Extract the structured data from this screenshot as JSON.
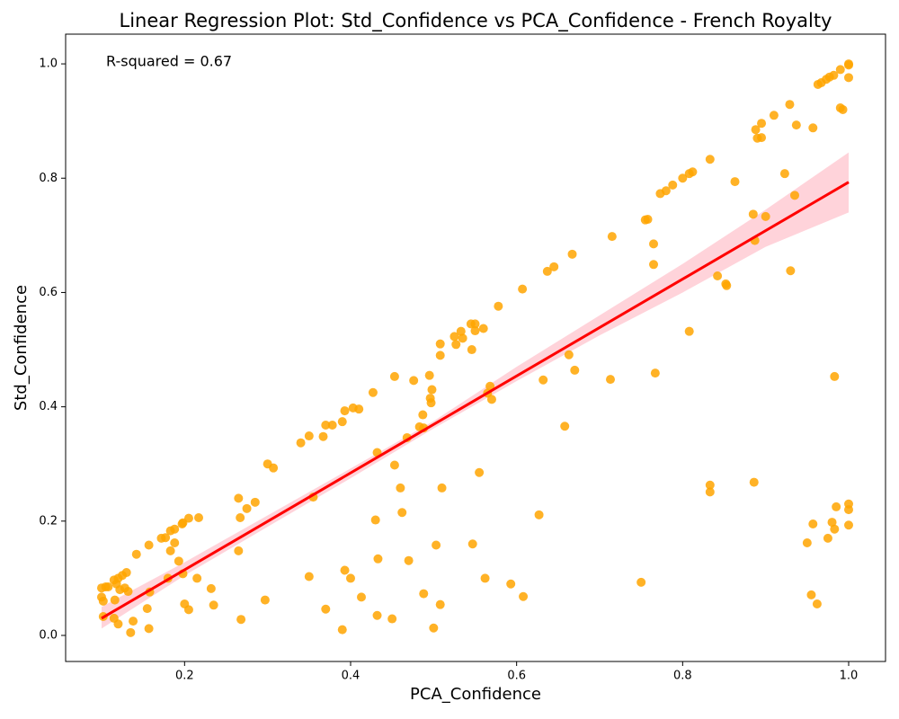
{
  "chart_data": {
    "type": "scatter",
    "title": "Linear Regression Plot: Std_Confidence vs PCA_Confidence - French Royalty",
    "xlabel": "PCA_Confidence",
    "ylabel": "Std_Confidence",
    "annotation": "R-squared = 0.67",
    "xlim": [
      0.0567,
      1.0444
    ],
    "ylim": [
      -0.0456,
      1.052
    ],
    "xticks": [
      0.2,
      0.4,
      0.6,
      0.8,
      {
        "value": 1,
        "label": "1.0"
      }
    ],
    "yticks": [
      {
        "value": 0,
        "label": "0.0"
      },
      0.2,
      0.4,
      0.6,
      0.8,
      {
        "value": 1,
        "label": "1.0"
      }
    ],
    "grid": false,
    "points": {
      "color": "#ffa500",
      "x": [
        0.1,
        0.1,
        0.102,
        0.105,
        0.108,
        0.102,
        0.115,
        0.12,
        0.125,
        0.13,
        0.118,
        0.122,
        0.128,
        0.132,
        0.116,
        0.12,
        0.115,
        0.135,
        0.138,
        0.142,
        0.155,
        0.158,
        0.157,
        0.157,
        0.172,
        0.177,
        0.18,
        0.183,
        0.183,
        0.188,
        0.188,
        0.193,
        0.197,
        0.198,
        0.198,
        0.2,
        0.205,
        0.205,
        0.215,
        0.217,
        0.232,
        0.235,
        0.265,
        0.265,
        0.267,
        0.268,
        0.275,
        0.285,
        0.297,
        0.3,
        0.307,
        0.34,
        0.35,
        0.35,
        0.355,
        0.367,
        0.37,
        0.37,
        0.378,
        0.39,
        0.39,
        0.393,
        0.393,
        0.4,
        0.403,
        0.41,
        0.413,
        0.427,
        0.43,
        0.432,
        0.432,
        0.433,
        0.45,
        0.453,
        0.453,
        0.46,
        0.462,
        0.468,
        0.47,
        0.476,
        0.483,
        0.488,
        0.487,
        0.488,
        0.495,
        0.496,
        0.497,
        0.498,
        0.5,
        0.503,
        0.508,
        0.508,
        0.508,
        0.51,
        0.525,
        0.527,
        0.533,
        0.535,
        0.545,
        0.546,
        0.547,
        0.55,
        0.55,
        0.555,
        0.56,
        0.562,
        0.565,
        0.568,
        0.57,
        0.578,
        0.593,
        0.607,
        0.608,
        0.627,
        0.632,
        0.637,
        0.645,
        0.658,
        0.663,
        0.667,
        0.67,
        0.713,
        0.715,
        0.75,
        0.755,
        0.758,
        0.765,
        0.765,
        0.767,
        0.773,
        0.78,
        0.788,
        0.8,
        0.808,
        0.808,
        0.812,
        0.833,
        0.833,
        0.833,
        0.842,
        0.852,
        0.853,
        0.863,
        0.885,
        0.886,
        0.887,
        0.888,
        0.89,
        0.895,
        0.895,
        0.9,
        0.91,
        0.923,
        0.929,
        0.93,
        0.935,
        0.937,
        0.95,
        0.955,
        0.957,
        0.957,
        0.962,
        0.963,
        0.967,
        0.973,
        0.975,
        0.977,
        0.98,
        0.982,
        0.983,
        0.983,
        0.985,
        0.99,
        0.993,
        0.99,
        1.0,
        1.0,
        1.0,
        1.0,
        1.0,
        1.0
      ],
      "y": [
        0.083,
        0.067,
        0.06,
        0.085,
        0.085,
        0.033,
        0.097,
        0.1,
        0.105,
        0.11,
        0.09,
        0.08,
        0.083,
        0.077,
        0.062,
        0.02,
        0.03,
        0.005,
        0.025,
        0.142,
        0.047,
        0.076,
        0.158,
        0.012,
        0.17,
        0.171,
        0.1,
        0.148,
        0.183,
        0.186,
        0.162,
        0.13,
        0.195,
        0.197,
        0.108,
        0.055,
        0.205,
        0.045,
        0.1,
        0.206,
        0.082,
        0.053,
        0.24,
        0.148,
        0.206,
        0.028,
        0.222,
        0.233,
        0.062,
        0.3,
        0.293,
        0.337,
        0.103,
        0.349,
        0.242,
        0.348,
        0.368,
        0.046,
        0.368,
        0.374,
        0.01,
        0.393,
        0.114,
        0.1,
        0.398,
        0.396,
        0.067,
        0.425,
        0.202,
        0.32,
        0.035,
        0.134,
        0.029,
        0.453,
        0.298,
        0.258,
        0.215,
        0.346,
        0.131,
        0.446,
        0.365,
        0.363,
        0.386,
        0.073,
        0.455,
        0.415,
        0.407,
        0.43,
        0.013,
        0.158,
        0.054,
        0.51,
        0.49,
        0.258,
        0.523,
        0.509,
        0.532,
        0.52,
        0.545,
        0.5,
        0.16,
        0.545,
        0.533,
        0.285,
        0.537,
        0.1,
        0.424,
        0.436,
        0.413,
        0.576,
        0.09,
        0.606,
        0.068,
        0.211,
        0.447,
        0.637,
        0.645,
        0.366,
        0.491,
        0.667,
        0.464,
        0.448,
        0.698,
        0.093,
        0.727,
        0.728,
        0.685,
        0.649,
        0.459,
        0.773,
        0.778,
        0.788,
        0.8,
        0.808,
        0.532,
        0.811,
        0.833,
        0.263,
        0.251,
        0.629,
        0.615,
        0.612,
        0.794,
        0.737,
        0.268,
        0.691,
        0.885,
        0.87,
        0.871,
        0.896,
        0.733,
        0.91,
        0.808,
        0.929,
        0.638,
        0.77,
        0.893,
        0.162,
        0.071,
        0.195,
        0.888,
        0.055,
        0.964,
        0.967,
        0.973,
        0.17,
        0.977,
        0.198,
        0.98,
        0.186,
        0.453,
        0.225,
        0.923,
        0.92,
        0.99,
        1.0,
        0.998,
        0.976,
        0.23,
        0.22,
        0.193
      ]
    },
    "regression": {
      "color": "#ff0000",
      "x": [
        0.1,
        1.0
      ],
      "y": [
        0.03,
        0.793
      ]
    },
    "band": {
      "color": "#ffc0cb",
      "x": [
        0.1,
        0.2,
        0.3,
        0.4,
        0.5,
        0.6,
        0.7,
        0.8,
        0.9,
        1.0
      ],
      "lower": [
        0.012,
        0.105,
        0.19,
        0.275,
        0.362,
        0.445,
        0.525,
        0.6,
        0.68,
        0.74
      ],
      "upper": [
        0.05,
        0.128,
        0.21,
        0.292,
        0.375,
        0.47,
        0.56,
        0.65,
        0.745,
        0.845
      ]
    }
  }
}
